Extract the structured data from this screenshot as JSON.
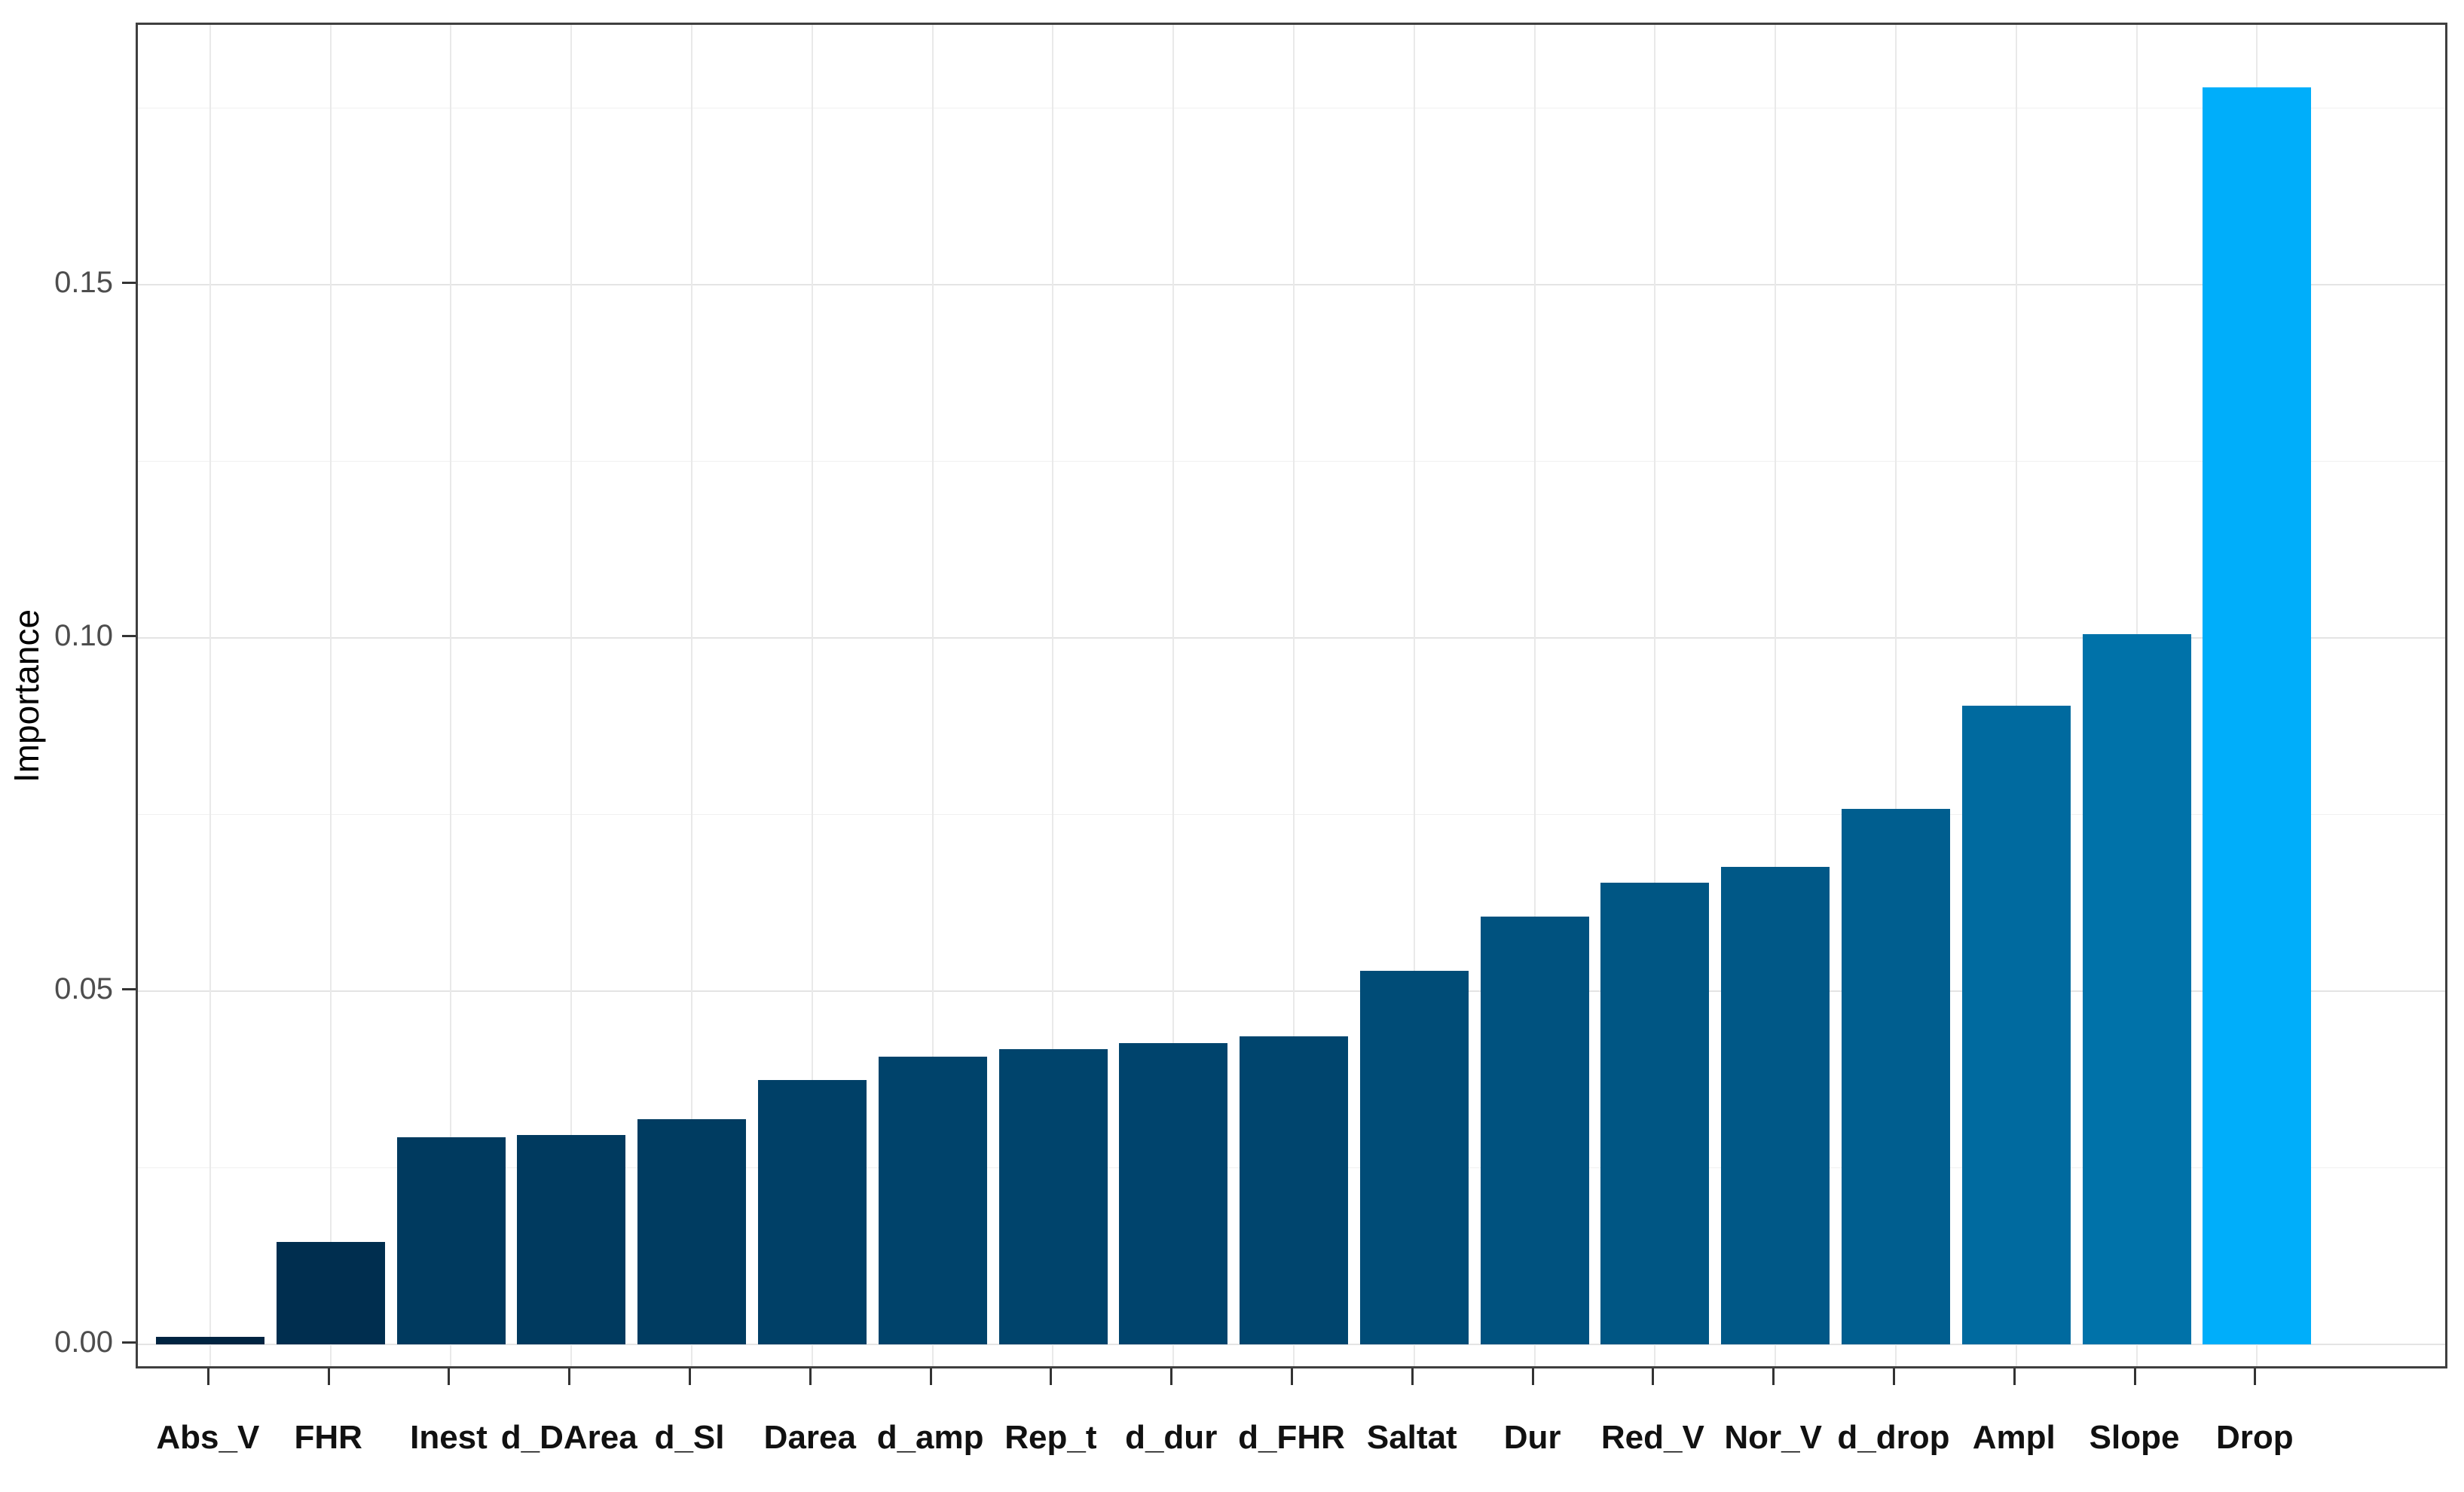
{
  "chart_data": {
    "type": "bar",
    "title": "",
    "xlabel": "",
    "ylabel": "Importance",
    "categories": [
      "Abs_V",
      "FHR",
      "Inest",
      "d_DArea",
      "d_Sl",
      "Darea",
      "d_amp",
      "Rep_t",
      "d_dur",
      "d_FHR",
      "Saltat",
      "Dur",
      "Red_V",
      "Nor_V",
      "d_drop",
      "Ampl",
      "Slope",
      "Drop"
    ],
    "values": [
      0.0011,
      0.0145,
      0.0293,
      0.0296,
      0.0319,
      0.0374,
      0.0407,
      0.0418,
      0.0426,
      0.0436,
      0.0529,
      0.0606,
      0.0654,
      0.0676,
      0.0758,
      0.0904,
      0.1005,
      0.1779
    ],
    "ylim": [
      -0.004,
      0.187
    ],
    "yticks": [
      0,
      0.05,
      0.1,
      0.15
    ],
    "ytick_labels": [
      "0.00",
      "0.05",
      "0.10",
      "0.15"
    ],
    "minor_yticks": [
      0.025,
      0.075,
      0.125,
      0.175
    ],
    "grid": "on",
    "legend": "none",
    "bar_width_fraction": 0.9,
    "colors": {
      "fill_gradient_low": "#002340",
      "fill_gradient_high": "#00AEFA",
      "panel_border": "#3f3f3f",
      "grid_major": "#e4e4e4",
      "grid_minor": "#f1f1f1",
      "tick_text": "#4d4d4d",
      "category_text": "#111111"
    },
    "highlight_category": "Drop"
  }
}
